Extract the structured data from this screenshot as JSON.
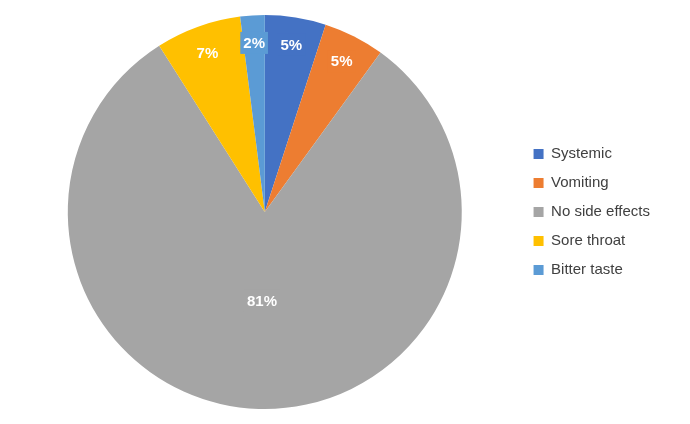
{
  "chart_data": {
    "type": "pie",
    "categories": [
      "Systemic",
      "Vomiting",
      "No side effects",
      "Sore throat",
      "Bitter taste"
    ],
    "values": [
      5,
      5,
      81,
      7,
      2
    ],
    "value_labels": [
      "5%",
      "5%",
      "81%",
      "7%",
      "2%"
    ],
    "colors": [
      "#4472c4",
      "#ed7d31",
      "#a5a5a5",
      "#ffc000",
      "#5b9bd5"
    ],
    "data_labels": true,
    "legend": "right"
  }
}
